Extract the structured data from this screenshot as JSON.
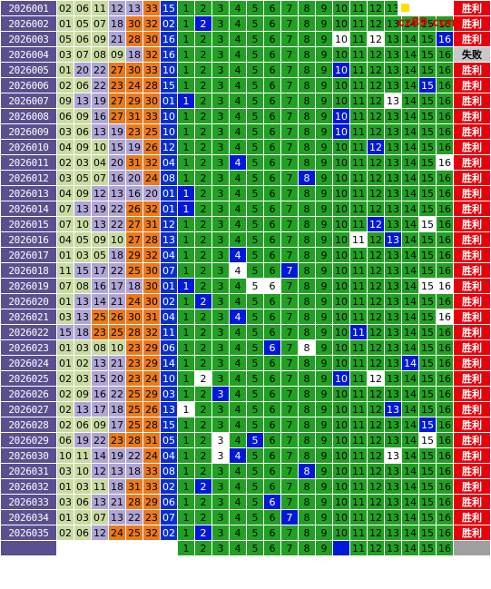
{
  "site": {
    "logo_text": "cz89.com"
  },
  "results": {
    "win": "胜利",
    "fail": "失败"
  },
  "colors": {
    "issue_bg": "#5a4f8f",
    "zone1": "#c9dba2",
    "zone2": "#b0a6d6",
    "zone3": "#ea7a1c",
    "blue_ball": "#0a2fcc",
    "grid_green": "#22a024",
    "hit": "#0018d8",
    "win": "#e8000c",
    "fail": "#c8c8c8"
  },
  "positions": [
    "1",
    "2",
    "3",
    "4",
    "5",
    "6",
    "7",
    "8",
    "9",
    "10",
    "11",
    "12",
    "13",
    "14",
    "15",
    "16"
  ],
  "rows": [
    {
      "issue": "2026001",
      "reds": [
        "02",
        "06",
        "11",
        "12",
        "13",
        "33"
      ],
      "blue": "15",
      "hit": 15,
      "gaps": [],
      "result": "win"
    },
    {
      "issue": "2026002",
      "reds": [
        "01",
        "05",
        "07",
        "18",
        "30",
        "32"
      ],
      "blue": "02",
      "hit": 2,
      "gaps": [],
      "result": "win"
    },
    {
      "issue": "2026003",
      "reds": [
        "05",
        "06",
        "09",
        "21",
        "28",
        "30"
      ],
      "blue": "16",
      "hit": 16,
      "gaps": [
        10,
        12
      ],
      "result": "win"
    },
    {
      "issue": "2026004",
      "reds": [
        "03",
        "07",
        "08",
        "09",
        "18",
        "32"
      ],
      "blue": "16",
      "hit": 0,
      "gaps": [],
      "result": "fail"
    },
    {
      "issue": "2026005",
      "reds": [
        "01",
        "20",
        "22",
        "27",
        "30",
        "33"
      ],
      "blue": "10",
      "hit": 10,
      "gaps": [],
      "result": "win"
    },
    {
      "issue": "2026006",
      "reds": [
        "02",
        "06",
        "22",
        "23",
        "24",
        "28"
      ],
      "blue": "15",
      "hit": 15,
      "gaps": [],
      "result": "win"
    },
    {
      "issue": "2026007",
      "reds": [
        "09",
        "13",
        "19",
        "27",
        "29",
        "30"
      ],
      "blue": "01",
      "hit": 1,
      "gaps": [
        13
      ],
      "result": "win"
    },
    {
      "issue": "2026008",
      "reds": [
        "06",
        "09",
        "16",
        "27",
        "31",
        "33"
      ],
      "blue": "10",
      "hit": 10,
      "gaps": [],
      "result": "win"
    },
    {
      "issue": "2026009",
      "reds": [
        "03",
        "06",
        "13",
        "19",
        "23",
        "25"
      ],
      "blue": "10",
      "hit": 10,
      "gaps": [],
      "result": "win"
    },
    {
      "issue": "2026010",
      "reds": [
        "04",
        "09",
        "10",
        "15",
        "19",
        "26"
      ],
      "blue": "12",
      "hit": 12,
      "gaps": [],
      "result": "win"
    },
    {
      "issue": "2026011",
      "reds": [
        "02",
        "03",
        "04",
        "20",
        "31",
        "32"
      ],
      "blue": "04",
      "hit": 4,
      "gaps": [
        16
      ],
      "result": "win"
    },
    {
      "issue": "2026012",
      "reds": [
        "03",
        "05",
        "07",
        "16",
        "20",
        "24"
      ],
      "blue": "08",
      "hit": 8,
      "gaps": [],
      "result": "win"
    },
    {
      "issue": "2026013",
      "reds": [
        "04",
        "09",
        "12",
        "13",
        "16",
        "20"
      ],
      "blue": "01",
      "hit": 1,
      "gaps": [],
      "result": "win"
    },
    {
      "issue": "2026014",
      "reds": [
        "07",
        "13",
        "19",
        "22",
        "26",
        "32"
      ],
      "blue": "01",
      "hit": 1,
      "gaps": [],
      "result": "win"
    },
    {
      "issue": "2026015",
      "reds": [
        "07",
        "10",
        "13",
        "22",
        "27",
        "31"
      ],
      "blue": "12",
      "hit": 12,
      "gaps": [
        15
      ],
      "result": "win"
    },
    {
      "issue": "2026016",
      "reds": [
        "04",
        "05",
        "09",
        "10",
        "27",
        "28"
      ],
      "blue": "13",
      "hit": 13,
      "gaps": [
        11
      ],
      "result": "win"
    },
    {
      "issue": "2026017",
      "reds": [
        "01",
        "03",
        "05",
        "18",
        "29",
        "32"
      ],
      "blue": "04",
      "hit": 4,
      "gaps": [],
      "result": "win"
    },
    {
      "issue": "2026018",
      "reds": [
        "11",
        "15",
        "17",
        "22",
        "25",
        "30"
      ],
      "blue": "07",
      "hit": 7,
      "gaps": [
        4
      ],
      "result": "win"
    },
    {
      "issue": "2026019",
      "reds": [
        "07",
        "08",
        "16",
        "17",
        "18",
        "30"
      ],
      "blue": "01",
      "hit": 1,
      "gaps": [
        5,
        6,
        15,
        16
      ],
      "result": "win"
    },
    {
      "issue": "2026020",
      "reds": [
        "01",
        "13",
        "14",
        "21",
        "24",
        "30"
      ],
      "blue": "02",
      "hit": 2,
      "gaps": [],
      "result": "win"
    },
    {
      "issue": "2026021",
      "reds": [
        "03",
        "13",
        "25",
        "26",
        "30",
        "31"
      ],
      "blue": "04",
      "hit": 4,
      "gaps": [
        16
      ],
      "result": "win"
    },
    {
      "issue": "2026022",
      "reds": [
        "15",
        "18",
        "23",
        "25",
        "28",
        "32"
      ],
      "blue": "11",
      "hit": 11,
      "gaps": [],
      "result": "win"
    },
    {
      "issue": "2026023",
      "reds": [
        "01",
        "03",
        "08",
        "10",
        "23",
        "29"
      ],
      "blue": "06",
      "hit": 6,
      "gaps": [
        8
      ],
      "result": "win"
    },
    {
      "issue": "2026024",
      "reds": [
        "01",
        "02",
        "13",
        "21",
        "23",
        "29"
      ],
      "blue": "14",
      "hit": 14,
      "gaps": [],
      "result": "win"
    },
    {
      "issue": "2026025",
      "reds": [
        "02",
        "03",
        "15",
        "20",
        "23",
        "24"
      ],
      "blue": "10",
      "hit": 10,
      "gaps": [
        2,
        12
      ],
      "result": "win"
    },
    {
      "issue": "2026026",
      "reds": [
        "02",
        "09",
        "16",
        "22",
        "25",
        "29"
      ],
      "blue": "03",
      "hit": 3,
      "gaps": [],
      "result": "win"
    },
    {
      "issue": "2026027",
      "reds": [
        "02",
        "13",
        "17",
        "18",
        "25",
        "26"
      ],
      "blue": "13",
      "hit": 13,
      "gaps": [
        1
      ],
      "result": "win"
    },
    {
      "issue": "2026028",
      "reds": [
        "02",
        "06",
        "09",
        "17",
        "25",
        "28"
      ],
      "blue": "15",
      "hit": 15,
      "gaps": [],
      "result": "win"
    },
    {
      "issue": "2026029",
      "reds": [
        "06",
        "19",
        "22",
        "23",
        "28",
        "31"
      ],
      "blue": "05",
      "hit": 5,
      "gaps": [
        3,
        15
      ],
      "result": "win"
    },
    {
      "issue": "2026030",
      "reds": [
        "10",
        "11",
        "14",
        "19",
        "22",
        "24"
      ],
      "blue": "04",
      "hit": 4,
      "gaps": [
        3,
        13
      ],
      "result": "win"
    },
    {
      "issue": "2026031",
      "reds": [
        "03",
        "10",
        "12",
        "13",
        "18",
        "33"
      ],
      "blue": "08",
      "hit": 8,
      "gaps": [],
      "result": "win"
    },
    {
      "issue": "2026032",
      "reds": [
        "01",
        "03",
        "11",
        "18",
        "31",
        "33"
      ],
      "blue": "02",
      "hit": 2,
      "gaps": [],
      "result": "win"
    },
    {
      "issue": "2026033",
      "reds": [
        "03",
        "06",
        "13",
        "21",
        "28",
        "29"
      ],
      "blue": "06",
      "hit": 6,
      "gaps": [],
      "result": "win"
    },
    {
      "issue": "2026034",
      "reds": [
        "01",
        "03",
        "07",
        "13",
        "22",
        "23"
      ],
      "blue": "07",
      "hit": 7,
      "gaps": [],
      "result": "win"
    },
    {
      "issue": "2026035",
      "reds": [
        "02",
        "06",
        "12",
        "24",
        "25",
        "32"
      ],
      "blue": "02",
      "hit": 2,
      "gaps": [],
      "result": "win"
    }
  ],
  "next_row": {
    "hit": 10
  }
}
